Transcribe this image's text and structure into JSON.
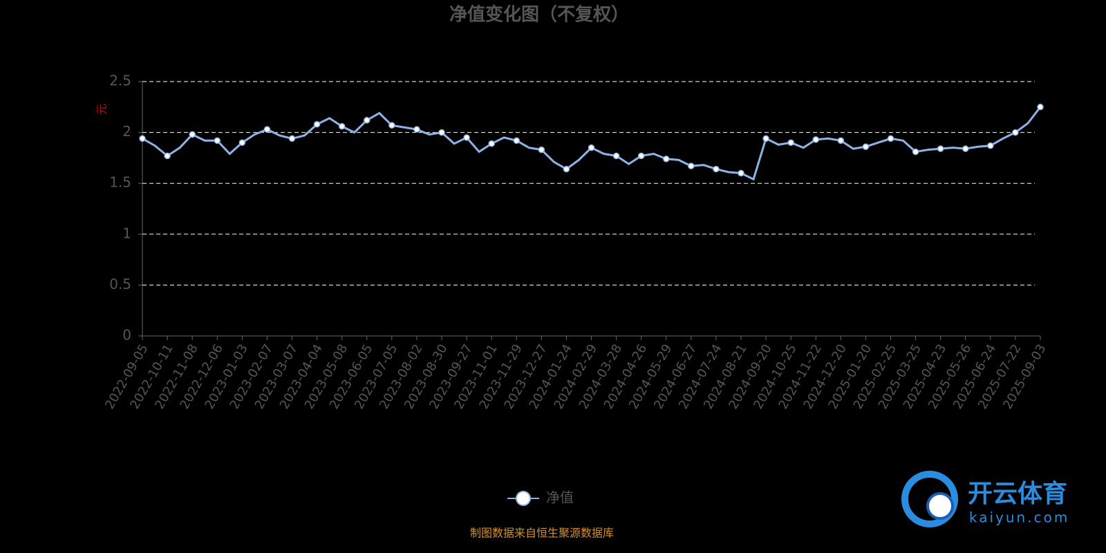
{
  "chart_data": {
    "type": "line",
    "title": "净值变化图（不复权）",
    "y_label": "元",
    "source": "制图数据来自恒生聚源数据库",
    "categories": [
      "2022-09-05",
      null,
      "2022-10-11",
      null,
      "2022-11-08",
      null,
      "2022-12-06",
      null,
      "2023-01-03",
      null,
      "2023-02-07",
      null,
      "2023-03-07",
      null,
      "2023-04-04",
      null,
      "2023-05-08",
      null,
      "2023-06-05",
      null,
      "2023-07-05",
      null,
      "2023-08-02",
      null,
      "2023-08-30",
      null,
      "2023-09-27",
      null,
      "2023-11-01",
      null,
      "2023-11-29",
      null,
      "2023-12-27",
      null,
      "2024-01-24",
      null,
      "2024-02-29",
      null,
      "2024-03-28",
      null,
      "2024-04-26",
      null,
      "2024-05-29",
      null,
      "2024-06-27",
      null,
      "2024-07-24",
      null,
      "2024-08-21",
      null,
      "2024-09-20",
      null,
      "2024-10-25",
      null,
      "2024-11-22",
      null,
      "2024-12-20",
      null,
      "2025-01-20",
      null,
      "2025-02-25",
      null,
      "2025-03-25",
      null,
      "2025-04-23",
      null,
      "2025-05-26",
      null,
      "2025-06-24",
      null,
      "2025-07-22",
      null,
      "2025-09-03"
    ],
    "series": [
      {
        "name": "净值",
        "color": "#8fb3e6",
        "values": [
          1.94,
          1.87,
          1.77,
          1.85,
          1.98,
          1.92,
          1.92,
          1.79,
          1.9,
          1.98,
          2.03,
          1.97,
          1.94,
          1.97,
          2.08,
          2.14,
          2.06,
          2.0,
          2.12,
          2.19,
          2.07,
          2.05,
          2.03,
          1.98,
          2.0,
          1.89,
          1.95,
          1.81,
          1.89,
          1.95,
          1.92,
          1.85,
          1.83,
          1.71,
          1.64,
          1.73,
          1.85,
          1.79,
          1.77,
          1.69,
          1.77,
          1.79,
          1.74,
          1.73,
          1.67,
          1.68,
          1.64,
          1.61,
          1.6,
          1.54,
          1.94,
          1.88,
          1.9,
          1.85,
          1.93,
          1.94,
          1.92,
          1.84,
          1.86,
          1.9,
          1.94,
          1.92,
          1.81,
          1.83,
          1.84,
          1.85,
          1.84,
          1.86,
          1.87,
          1.94,
          2.0,
          2.09,
          2.25
        ]
      }
    ],
    "ylim": [
      0,
      2.5
    ],
    "yticks": [
      0,
      0.5,
      1,
      1.5,
      2,
      2.5
    ],
    "grid": true
  },
  "watermark": {
    "brand": "开云体育",
    "url": "kaiyun.com"
  }
}
